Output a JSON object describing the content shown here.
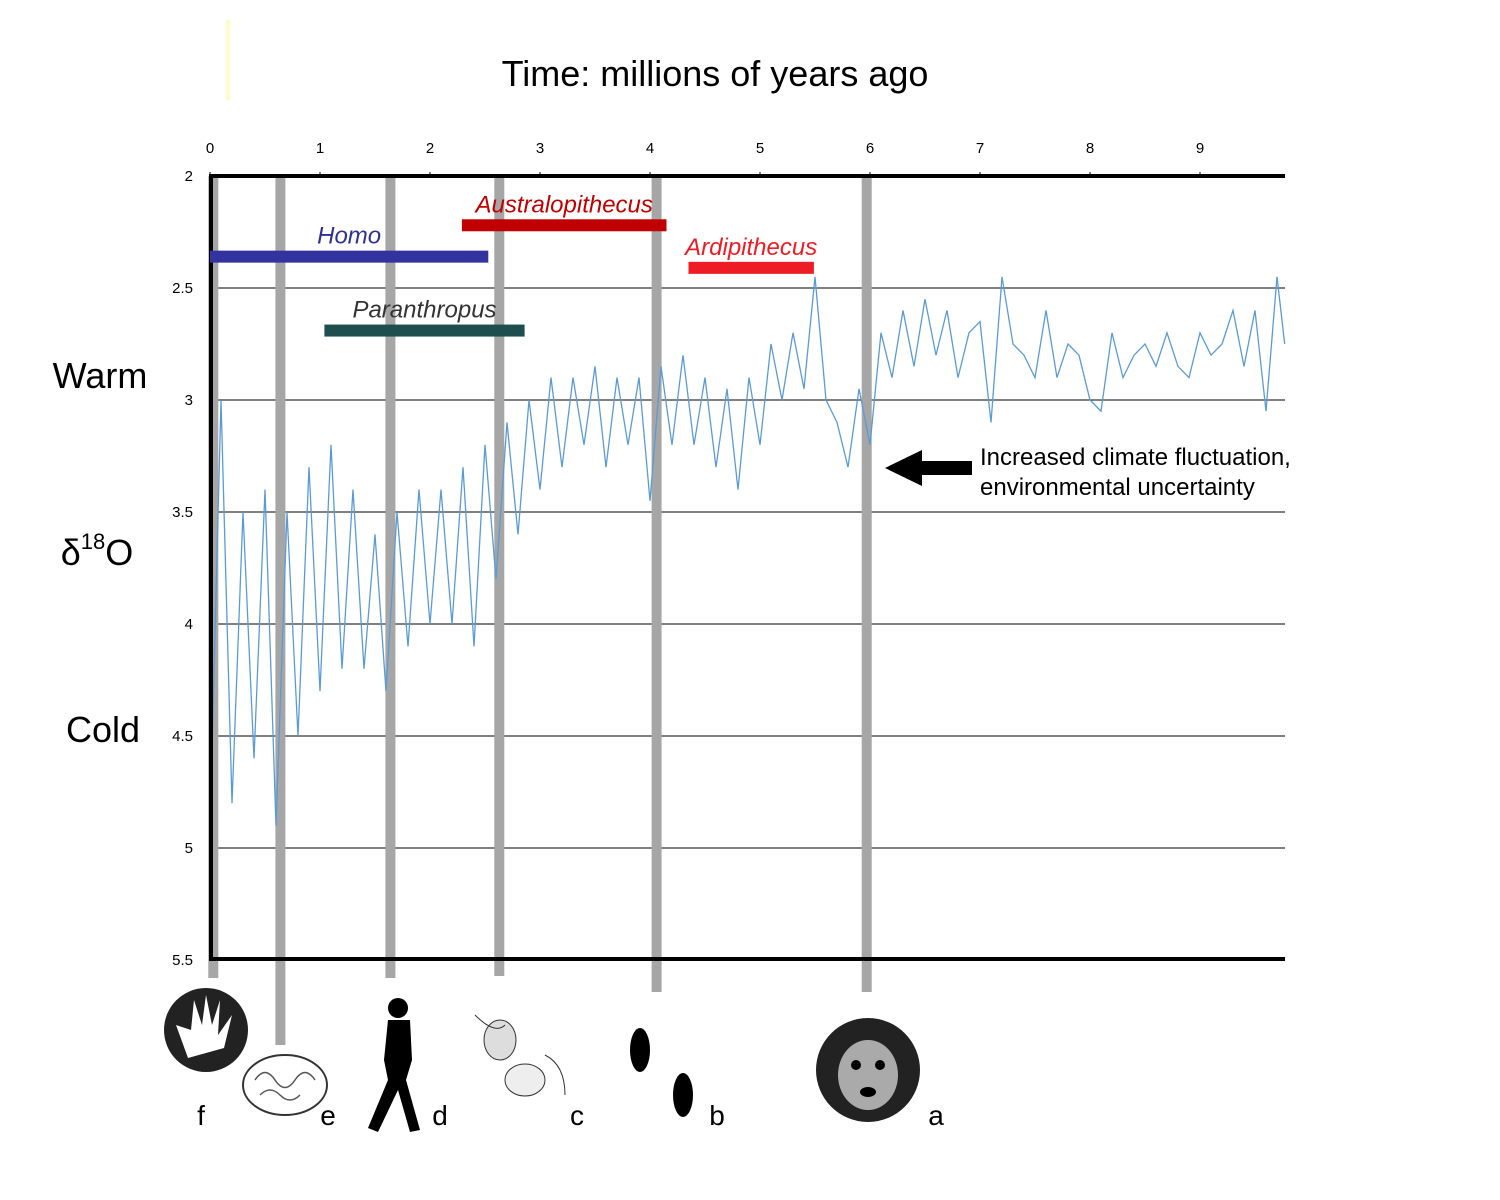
{
  "chart_data": {
    "type": "line",
    "title": "Time:  millions of years ago",
    "side_labels": {
      "warm": "Warm",
      "delta": "δ",
      "sup": "18",
      "o": "O",
      "cold": "Cold"
    },
    "xlim": [
      0,
      9.77
    ],
    "ylim": [
      2,
      5.5
    ],
    "y_inverted": true,
    "x_ticks": [
      "0",
      "1",
      "2",
      "3",
      "4",
      "5",
      "6",
      "7",
      "8",
      "9"
    ],
    "y_ticks": [
      "2",
      "2.5",
      "3",
      "3.5",
      "4",
      "4.5",
      "5",
      "5.5"
    ],
    "grid": "horizontal",
    "series_color": "#5b9bd5",
    "series": [
      {
        "points": [
          [
            0,
            4.9
          ],
          [
            0.1,
            3.0
          ],
          [
            0.2,
            4.8
          ],
          [
            0.3,
            3.5
          ],
          [
            0.4,
            4.6
          ],
          [
            0.5,
            3.4
          ],
          [
            0.6,
            4.9
          ],
          [
            0.7,
            3.5
          ],
          [
            0.8,
            4.5
          ],
          [
            0.9,
            3.3
          ],
          [
            1.0,
            4.3
          ],
          [
            1.1,
            3.2
          ],
          [
            1.2,
            4.2
          ],
          [
            1.3,
            3.4
          ],
          [
            1.4,
            4.2
          ],
          [
            1.5,
            3.6
          ],
          [
            1.6,
            4.3
          ],
          [
            1.7,
            3.5
          ],
          [
            1.8,
            4.1
          ],
          [
            1.9,
            3.4
          ],
          [
            2.0,
            4.0
          ],
          [
            2.1,
            3.4
          ],
          [
            2.2,
            4.0
          ],
          [
            2.3,
            3.3
          ],
          [
            2.4,
            4.1
          ],
          [
            2.5,
            3.2
          ],
          [
            2.6,
            3.8
          ],
          [
            2.7,
            3.1
          ],
          [
            2.8,
            3.6
          ],
          [
            2.9,
            3.0
          ],
          [
            3.0,
            3.4
          ],
          [
            3.1,
            2.9
          ],
          [
            3.2,
            3.3
          ],
          [
            3.3,
            2.9
          ],
          [
            3.4,
            3.2
          ],
          [
            3.5,
            2.85
          ],
          [
            3.6,
            3.3
          ],
          [
            3.7,
            2.9
          ],
          [
            3.8,
            3.2
          ],
          [
            3.9,
            2.9
          ],
          [
            4.0,
            3.45
          ],
          [
            4.1,
            2.85
          ],
          [
            4.2,
            3.2
          ],
          [
            4.3,
            2.8
          ],
          [
            4.4,
            3.2
          ],
          [
            4.5,
            2.9
          ],
          [
            4.6,
            3.3
          ],
          [
            4.7,
            2.95
          ],
          [
            4.8,
            3.4
          ],
          [
            4.9,
            2.9
          ],
          [
            5.0,
            3.2
          ],
          [
            5.1,
            2.75
          ],
          [
            5.2,
            3.0
          ],
          [
            5.3,
            2.7
          ],
          [
            5.4,
            2.95
          ],
          [
            5.5,
            2.45
          ],
          [
            5.6,
            3.0
          ],
          [
            5.7,
            3.1
          ],
          [
            5.8,
            3.3
          ],
          [
            5.9,
            2.95
          ],
          [
            6.0,
            3.2
          ],
          [
            6.1,
            2.7
          ],
          [
            6.2,
            2.9
          ],
          [
            6.3,
            2.6
          ],
          [
            6.4,
            2.85
          ],
          [
            6.5,
            2.55
          ],
          [
            6.6,
            2.8
          ],
          [
            6.7,
            2.6
          ],
          [
            6.8,
            2.9
          ],
          [
            6.9,
            2.7
          ],
          [
            7.0,
            2.65
          ],
          [
            7.1,
            3.1
          ],
          [
            7.2,
            2.45
          ],
          [
            7.3,
            2.75
          ],
          [
            7.4,
            2.8
          ],
          [
            7.5,
            2.9
          ],
          [
            7.6,
            2.6
          ],
          [
            7.7,
            2.9
          ],
          [
            7.8,
            2.75
          ],
          [
            7.9,
            2.8
          ],
          [
            8.0,
            3.0
          ],
          [
            8.1,
            3.05
          ],
          [
            8.2,
            2.7
          ],
          [
            8.3,
            2.9
          ],
          [
            8.4,
            2.8
          ],
          [
            8.5,
            2.75
          ],
          [
            8.6,
            2.85
          ],
          [
            8.7,
            2.7
          ],
          [
            8.8,
            2.85
          ],
          [
            8.9,
            2.9
          ],
          [
            9.0,
            2.7
          ],
          [
            9.1,
            2.8
          ],
          [
            9.2,
            2.75
          ],
          [
            9.3,
            2.6
          ],
          [
            9.4,
            2.85
          ],
          [
            9.5,
            2.6
          ],
          [
            9.6,
            3.05
          ],
          [
            9.7,
            2.45
          ],
          [
            9.77,
            2.75
          ]
        ]
      }
    ],
    "event_lines": [
      {
        "x": 0.03,
        "label": "f"
      },
      {
        "x": 0.64,
        "label": "e"
      },
      {
        "x": 1.64,
        "label": "d"
      },
      {
        "x": 2.63,
        "label": "c"
      },
      {
        "x": 4.06,
        "label": "b"
      },
      {
        "x": 5.97,
        "label": "a"
      }
    ],
    "event_icons": [
      "hand-icon",
      "brain-icon",
      "walking-hominin-icon",
      "stone-tool-icon",
      "footprints-icon",
      "ape-face-icon"
    ],
    "genera": [
      {
        "name": "Homo",
        "start": 0,
        "end": 2.53,
        "y": 2.36,
        "color": "#3333a0",
        "text_color": "#2e3192"
      },
      {
        "name": "Australopithecus",
        "start": 2.29,
        "end": 4.15,
        "y": 2.22,
        "color": "#c00000",
        "text_color": "#c00000"
      },
      {
        "name": "Ardipithecus",
        "start": 4.35,
        "end": 5.49,
        "y": 2.41,
        "color": "#ee1c24",
        "text_color": "#ee1c24"
      },
      {
        "name": "Paranthropus",
        "start": 1.04,
        "end": 2.86,
        "y": 2.69,
        "color": "#1f4e4e",
        "text_color": "#333333"
      }
    ],
    "annotation": {
      "lines": [
        "Increased climate fluctuation,",
        "environmental uncertainty"
      ],
      "arrow_to_x": 6.1,
      "y": 3.3
    }
  }
}
